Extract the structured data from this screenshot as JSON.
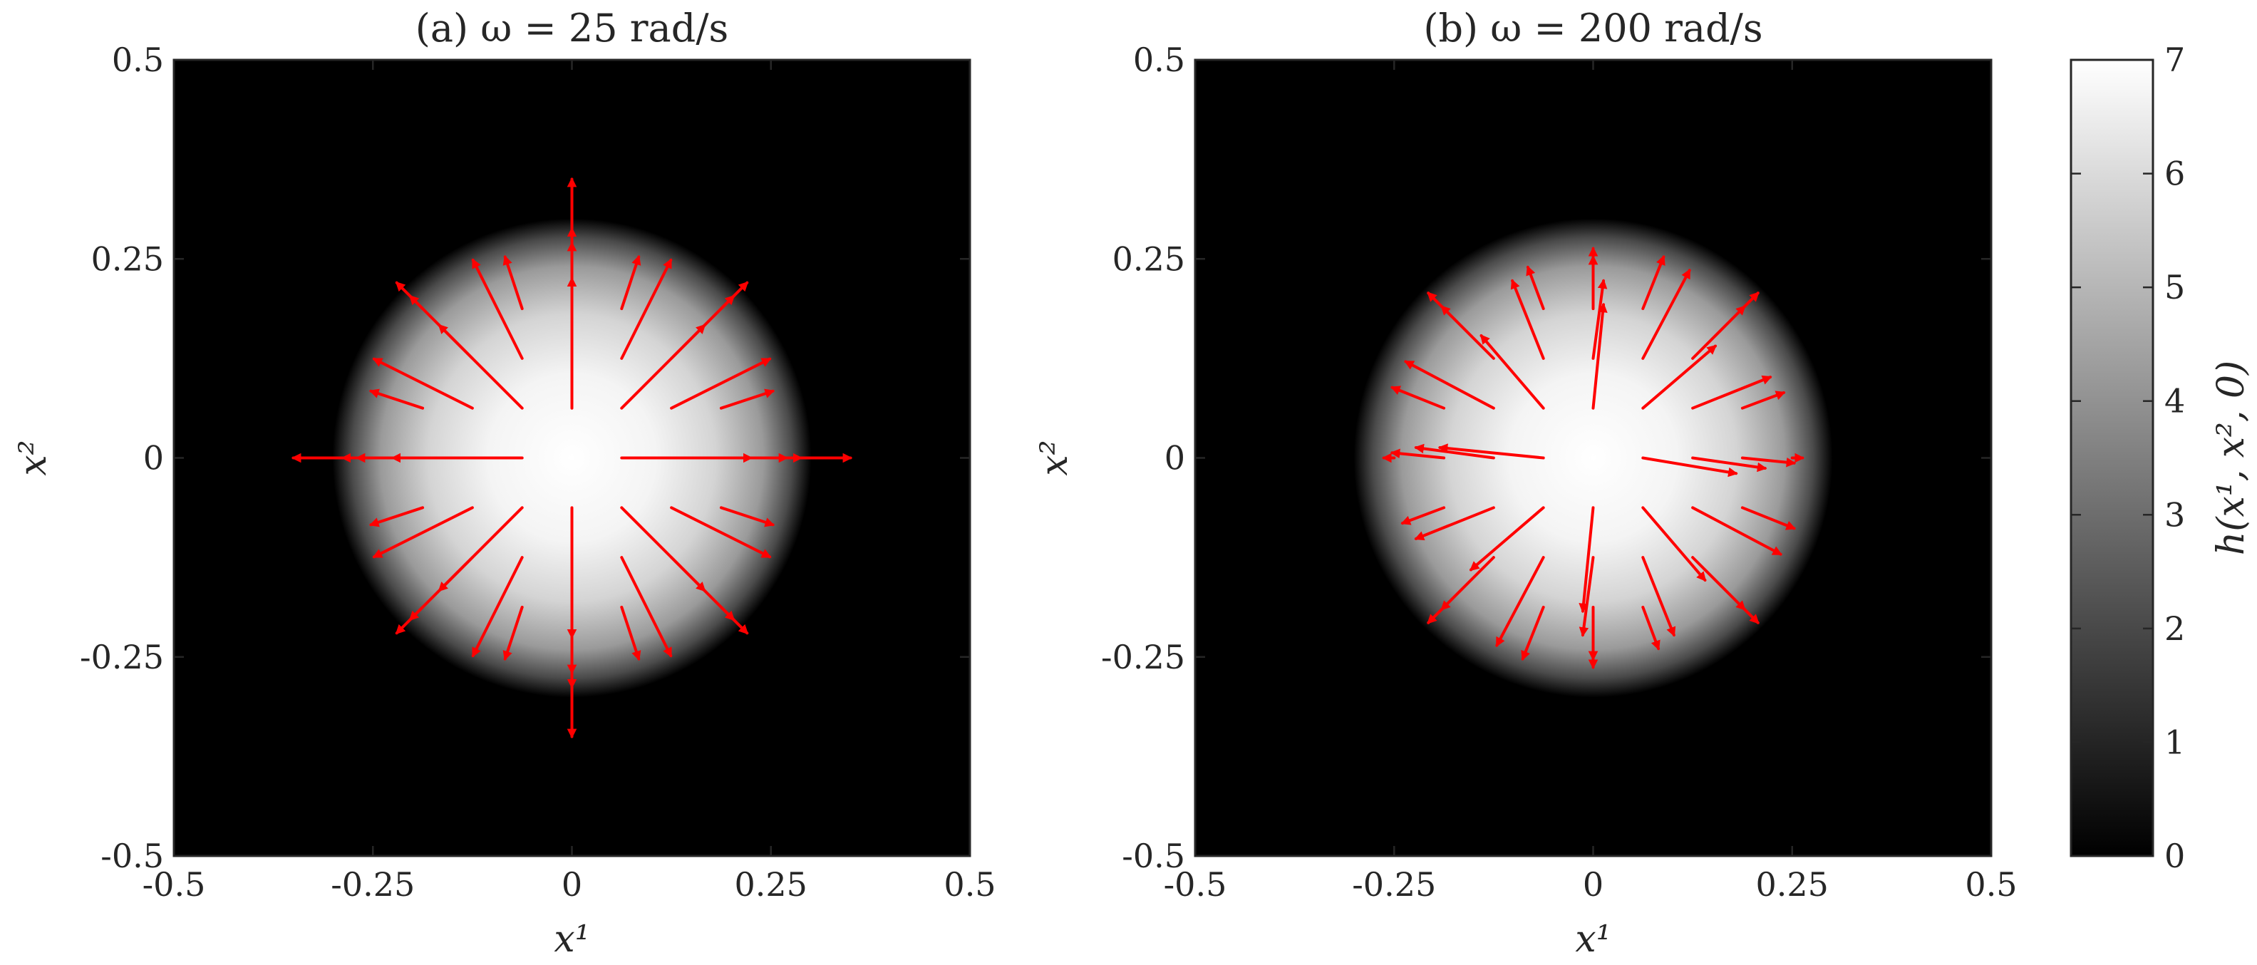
{
  "chart_data": [
    {
      "type": "heatmap",
      "panel": "a",
      "title": "(a) ω = 25 rad/s",
      "xlabel": "x¹",
      "ylabel": "x²",
      "xlim": [
        -0.5,
        0.5
      ],
      "ylim": [
        -0.5,
        0.5
      ],
      "xticks": [
        -0.5,
        -0.25,
        0,
        0.25,
        0.5
      ],
      "yticks": [
        -0.5,
        -0.25,
        0,
        0.25,
        0.5
      ],
      "xtick_labels": [
        "-0.5",
        "-0.25",
        "0",
        "0.25",
        "0.5"
      ],
      "ytick_labels": [
        "0.5",
        "0.25",
        "0",
        "-0.25",
        "-0.5"
      ],
      "field": {
        "shape": "radial",
        "center": [
          0,
          0
        ],
        "peak": 7,
        "radius": 0.3
      },
      "quiver": {
        "color": "#ff0000",
        "spacing": 0.0625,
        "vectors": [
          [
            0.0625,
            0,
            0.25,
            0
          ],
          [
            0.125,
            0,
            0.25,
            0
          ],
          [
            0.1875,
            0,
            0.25,
            0
          ],
          [
            -0.0625,
            0,
            -0.25,
            0
          ],
          [
            -0.125,
            0,
            -0.25,
            0
          ],
          [
            -0.1875,
            0,
            -0.25,
            0
          ],
          [
            0,
            0.0625,
            0,
            0.25
          ],
          [
            0,
            0.125,
            0,
            0.25
          ],
          [
            0,
            0.1875,
            0,
            0.25
          ],
          [
            0,
            -0.0625,
            0,
            -0.25
          ],
          [
            0,
            -0.125,
            0,
            -0.25
          ],
          [
            0,
            -0.1875,
            0,
            -0.25
          ],
          [
            0.0625,
            0.0625,
            0.16,
            0.16
          ],
          [
            0.125,
            0.125,
            0.12,
            0.12
          ],
          [
            0.1875,
            0.1875,
            0.05,
            0.05
          ],
          [
            -0.0625,
            0.0625,
            -0.16,
            0.16
          ],
          [
            -0.125,
            0.125,
            -0.12,
            0.12
          ],
          [
            -0.1875,
            0.1875,
            -0.05,
            0.05
          ],
          [
            0.0625,
            -0.0625,
            0.16,
            -0.16
          ],
          [
            0.125,
            -0.125,
            0.12,
            -0.12
          ],
          [
            0.1875,
            -0.1875,
            0.05,
            -0.05
          ],
          [
            -0.0625,
            -0.0625,
            -0.16,
            -0.16
          ],
          [
            -0.125,
            -0.125,
            -0.12,
            -0.12
          ],
          [
            -0.1875,
            -0.1875,
            -0.05,
            -0.05
          ],
          [
            0.125,
            0.0625,
            0.19,
            0.095
          ],
          [
            0.1875,
            0.0625,
            0.1,
            0.033
          ],
          [
            0.0625,
            0.125,
            0.095,
            0.19
          ],
          [
            0.0625,
            0.1875,
            0.033,
            0.1
          ],
          [
            -0.125,
            0.0625,
            -0.19,
            0.095
          ],
          [
            -0.1875,
            0.0625,
            -0.1,
            0.033
          ],
          [
            -0.0625,
            0.125,
            -0.095,
            0.19
          ],
          [
            -0.0625,
            0.1875,
            -0.033,
            0.1
          ],
          [
            0.125,
            -0.0625,
            0.19,
            -0.095
          ],
          [
            0.1875,
            -0.0625,
            0.1,
            -0.033
          ],
          [
            0.0625,
            -0.125,
            0.095,
            -0.19
          ],
          [
            0.0625,
            -0.1875,
            0.033,
            -0.1
          ],
          [
            -0.125,
            -0.0625,
            -0.19,
            -0.095
          ],
          [
            -0.1875,
            -0.0625,
            -0.1,
            -0.033
          ],
          [
            -0.0625,
            -0.125,
            -0.095,
            -0.19
          ],
          [
            -0.0625,
            -0.1875,
            -0.033,
            -0.1
          ],
          [
            0.25,
            0,
            0.03,
            0
          ],
          [
            -0.25,
            0,
            -0.03,
            0
          ],
          [
            0,
            0.25,
            0,
            0.03
          ],
          [
            0,
            -0.25,
            0,
            -0.03
          ]
        ]
      }
    },
    {
      "type": "heatmap",
      "panel": "b",
      "title": "(b) ω = 200 rad/s",
      "xlabel": "x¹",
      "ylabel": "x²",
      "xlim": [
        -0.5,
        0.5
      ],
      "ylim": [
        -0.5,
        0.5
      ],
      "xticks": [
        -0.5,
        -0.25,
        0,
        0.25,
        0.5
      ],
      "yticks": [
        -0.5,
        -0.25,
        0,
        0.25,
        0.5
      ],
      "xtick_labels": [
        "-0.5",
        "-0.25",
        "0",
        "0.25",
        "0.5"
      ],
      "ytick_labels": [
        "0.5",
        "0.25",
        "0",
        "-0.25",
        "-0.5"
      ],
      "field": {
        "shape": "radial",
        "center": [
          0,
          0
        ],
        "peak": 7,
        "radius": 0.3
      },
      "quiver": {
        "color": "#ff0000",
        "spacing": 0.0625,
        "vectors": [
          [
            0.0625,
            0,
            0.18,
            -0.03
          ],
          [
            0.125,
            0,
            0.14,
            -0.02
          ],
          [
            0.1875,
            0,
            0.1,
            -0.01
          ],
          [
            -0.0625,
            0,
            -0.2,
            0.02
          ],
          [
            -0.125,
            0,
            -0.15,
            0.02
          ],
          [
            -0.1875,
            0,
            -0.1,
            0.01
          ],
          [
            0,
            0.0625,
            0.02,
            0.2
          ],
          [
            0,
            0.125,
            0.02,
            0.15
          ],
          [
            0,
            0.1875,
            0,
            0.1
          ],
          [
            0,
            -0.0625,
            -0.02,
            -0.2
          ],
          [
            0,
            -0.125,
            -0.02,
            -0.15
          ],
          [
            0,
            -0.1875,
            0,
            -0.1
          ],
          [
            0.0625,
            0.0625,
            0.14,
            0.12
          ],
          [
            0.125,
            0.125,
            0.1,
            0.1
          ],
          [
            0.1875,
            0.1875,
            0.03,
            0.03
          ],
          [
            -0.0625,
            0.0625,
            -0.12,
            0.14
          ],
          [
            -0.125,
            0.125,
            -0.1,
            0.1
          ],
          [
            -0.1875,
            0.1875,
            -0.03,
            0.03
          ],
          [
            0.0625,
            -0.0625,
            0.12,
            -0.14
          ],
          [
            0.125,
            -0.125,
            0.1,
            -0.1
          ],
          [
            0.1875,
            -0.1875,
            0.03,
            -0.03
          ],
          [
            -0.0625,
            -0.0625,
            -0.14,
            -0.12
          ],
          [
            -0.125,
            -0.125,
            -0.1,
            -0.1
          ],
          [
            -0.1875,
            -0.1875,
            -0.03,
            -0.03
          ],
          [
            0.125,
            0.0625,
            0.15,
            0.06
          ],
          [
            0.1875,
            0.0625,
            0.08,
            0.03
          ],
          [
            0.0625,
            0.125,
            0.09,
            0.17
          ],
          [
            0.0625,
            0.1875,
            0.04,
            0.1
          ],
          [
            -0.125,
            0.0625,
            -0.17,
            0.09
          ],
          [
            -0.1875,
            0.0625,
            -0.1,
            0.04
          ],
          [
            -0.0625,
            0.125,
            -0.06,
            0.15
          ],
          [
            -0.0625,
            0.1875,
            -0.03,
            0.08
          ],
          [
            0.125,
            -0.0625,
            0.17,
            -0.09
          ],
          [
            0.1875,
            -0.0625,
            0.1,
            -0.04
          ],
          [
            0.0625,
            -0.125,
            0.06,
            -0.15
          ],
          [
            0.0625,
            -0.1875,
            0.03,
            -0.08
          ],
          [
            -0.125,
            -0.0625,
            -0.15,
            -0.06
          ],
          [
            -0.1875,
            -0.0625,
            -0.08,
            -0.03
          ],
          [
            -0.0625,
            -0.125,
            -0.09,
            -0.17
          ],
          [
            -0.0625,
            -0.1875,
            -0.04,
            -0.1
          ],
          [
            0.25,
            0,
            0.02,
            0
          ],
          [
            -0.25,
            0,
            -0.02,
            0
          ],
          [
            0,
            0.25,
            0,
            0.02
          ],
          [
            0,
            -0.25,
            0,
            -0.02
          ]
        ]
      }
    }
  ],
  "colorbar": {
    "label": "h(x¹, x², 0)",
    "min": 0,
    "max": 7,
    "ticks": [
      0,
      1,
      2,
      3,
      4,
      5,
      6,
      7
    ],
    "tick_labels": [
      "0",
      "1",
      "2",
      "3",
      "4",
      "5",
      "6",
      "7"
    ],
    "colormap": "gray"
  }
}
